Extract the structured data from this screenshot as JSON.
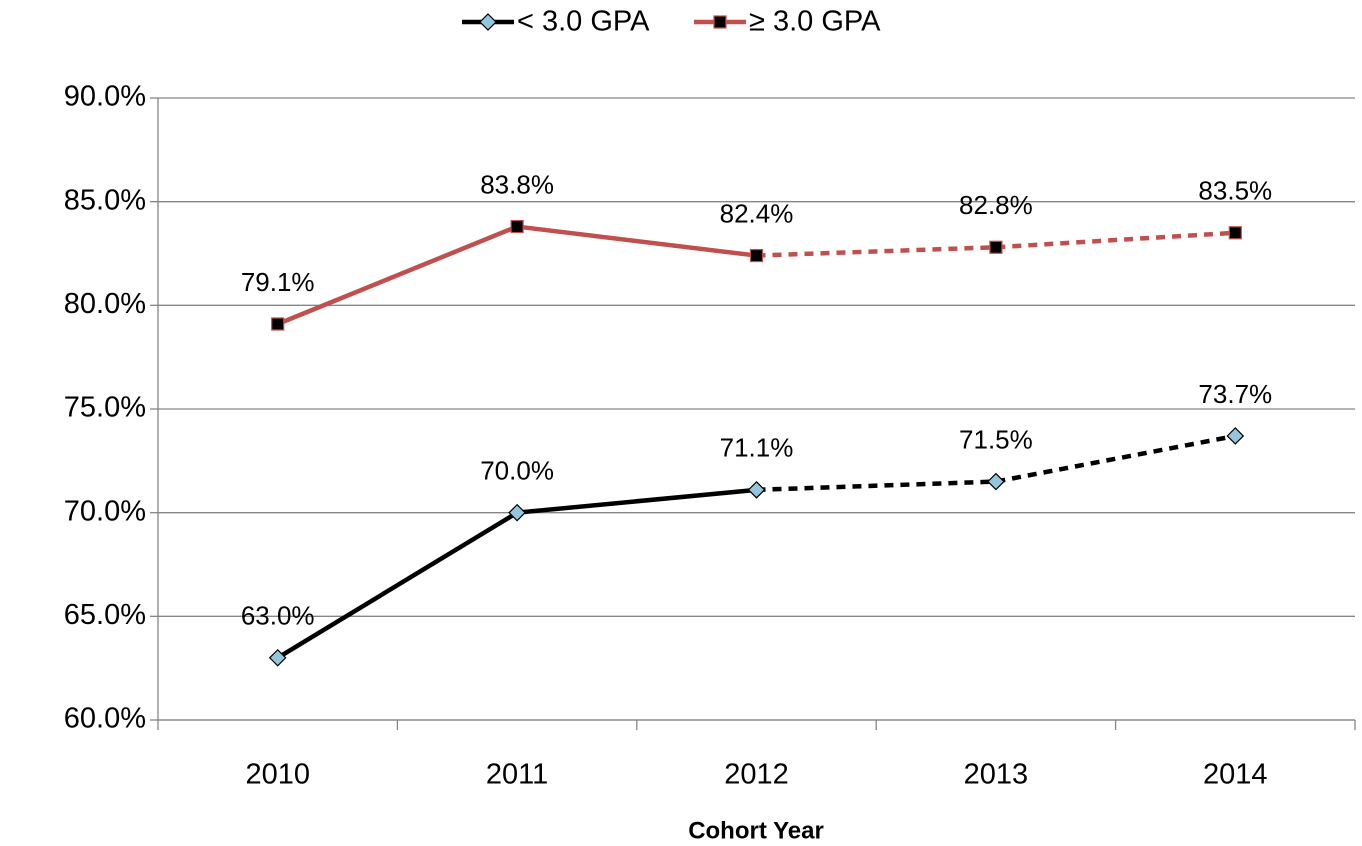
{
  "chart_data": {
    "type": "line",
    "x_label": "Cohort Year",
    "categories": [
      "2010",
      "2011",
      "2012",
      "2013",
      "2014"
    ],
    "series": [
      {
        "name": "< 3.0 GPA",
        "color": "#000000",
        "marker": "diamond",
        "marker_color": "#93c6dc",
        "dashed_after": "2012",
        "values": [
          63.0,
          70.0,
          71.1,
          71.5,
          73.7
        ],
        "value_labels": [
          "63.0%",
          "70.0%",
          "71.1%",
          "71.5%",
          "73.7%"
        ]
      },
      {
        "name": "≥ 3.0 GPA",
        "color": "#c0504d",
        "marker": "square",
        "marker_color": "#000000",
        "dashed_after": "2012",
        "values": [
          79.1,
          83.8,
          82.4,
          82.8,
          83.5
        ],
        "value_labels": [
          "79.1%",
          "83.8%",
          "82.4%",
          "82.8%",
          "83.5%"
        ]
      }
    ],
    "ylim": [
      60,
      90
    ],
    "yticks": [
      {
        "value": 60,
        "label": "60.0%"
      },
      {
        "value": 65,
        "label": "65.0%"
      },
      {
        "value": 70,
        "label": "70.0%"
      },
      {
        "value": 75,
        "label": "75.0%"
      },
      {
        "value": 80,
        "label": "80.0%"
      },
      {
        "value": 85,
        "label": "85.0%"
      },
      {
        "value": 90,
        "label": "90.0%"
      }
    ],
    "grid": true,
    "legend": "top"
  }
}
